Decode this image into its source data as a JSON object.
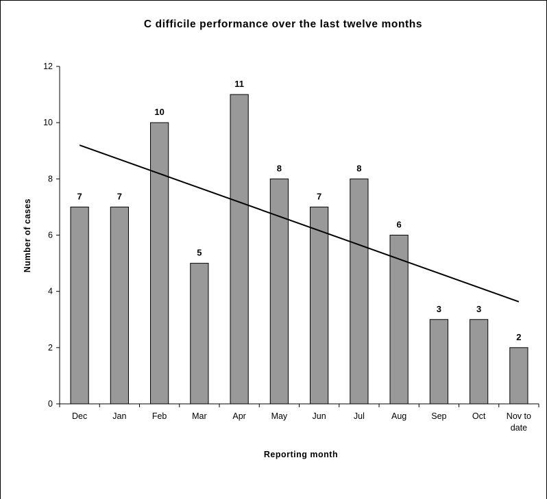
{
  "chart_data": {
    "type": "bar",
    "title": "C difficile performance over the last twelve months",
    "xlabel": "Reporting month",
    "ylabel": "Number of cases",
    "categories": [
      "Dec",
      "Jan",
      "Feb",
      "Mar",
      "Apr",
      "May",
      "Jun",
      "Jul",
      "Aug",
      "Sep",
      "Oct",
      [
        "Nov to",
        "date"
      ]
    ],
    "values": [
      7,
      7,
      10,
      5,
      11,
      8,
      7,
      8,
      6,
      3,
      3,
      2
    ],
    "ylim": [
      0,
      12
    ],
    "yticks": [
      0,
      2,
      4,
      6,
      8,
      10,
      12
    ],
    "data_labels": true,
    "grid": false,
    "legend": "none",
    "trendline": {
      "type": "linear",
      "start": 9.2,
      "end": 3.63
    },
    "colors": {
      "bar_fill": "#999999",
      "bar_stroke": "#000000",
      "trendline": "#000000"
    }
  }
}
